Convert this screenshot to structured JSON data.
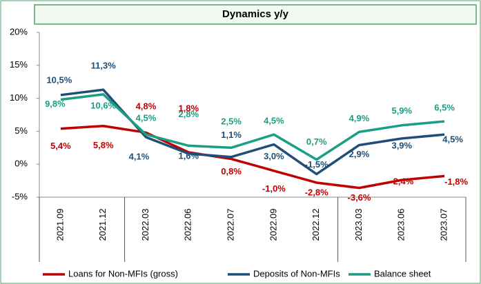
{
  "chart_data": {
    "type": "line",
    "title": "Dynamics y/y",
    "categories": [
      "2021.09",
      "2021.12",
      "2022.03",
      "2022.06",
      "2022.07",
      "2022.09",
      "2022.12",
      "2023.03",
      "2023.06",
      "2023.07"
    ],
    "series": [
      {
        "name": "Loans for Non-MFIs (gross)",
        "color": "#c00000",
        "values": [
          5.4,
          5.8,
          4.8,
          1.8,
          0.8,
          -1.0,
          -2.8,
          -3.6,
          -2.4,
          -1.8
        ],
        "value_labels": [
          "5,4%",
          "5,8%",
          "4,8%",
          "1,8%",
          "0,8%",
          "-1,0%",
          "-2,8%",
          "-3,6%",
          "-2,4%",
          "-1,8%"
        ]
      },
      {
        "name": "Deposits of Non-MFIs",
        "color": "#1f4e79",
        "values": [
          10.5,
          11.3,
          4.1,
          1.6,
          1.1,
          3.0,
          -1.5,
          2.9,
          3.9,
          4.5
        ],
        "value_labels": [
          "10,5%",
          "11,3%",
          "4,1%",
          "1,6%",
          "1,1%",
          "3,0%",
          "-1,5%",
          "2,9%",
          "3,9%",
          "4,5%"
        ]
      },
      {
        "name": "Balance sheet",
        "color": "#1a9e84",
        "values": [
          9.8,
          10.6,
          4.5,
          2.8,
          2.5,
          4.5,
          0.7,
          4.9,
          5.9,
          6.5
        ],
        "value_labels": [
          "9,8%",
          "10,6%",
          "4,5%",
          "2,8%",
          "2,5%",
          "4,5%",
          "0,7%",
          "4,9%",
          "5,9%",
          "6,5%"
        ]
      }
    ],
    "ylim": [
      -5,
      20
    ],
    "yticks": [
      {
        "value": -5,
        "label": "-5%"
      },
      {
        "value": 0,
        "label": "0%"
      },
      {
        "value": 5,
        "label": "5%"
      },
      {
        "value": 10,
        "label": "10%"
      },
      {
        "value": 15,
        "label": "15%"
      },
      {
        "value": 20,
        "label": "20%"
      }
    ],
    "grid": false,
    "legend": "bottom"
  }
}
